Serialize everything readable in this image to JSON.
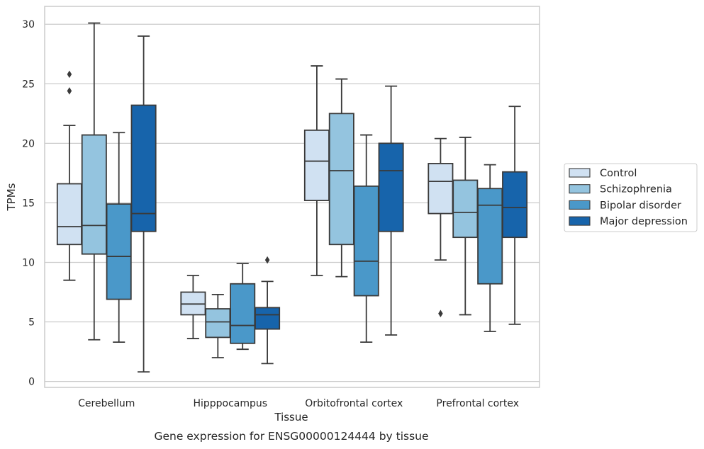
{
  "caption": "Gene expression for ENSG00000124444 by tissue",
  "chart_data": {
    "type": "box",
    "xlabel": "Tissue",
    "ylabel": "TPMs",
    "ylim": [
      -0.5,
      31.5
    ],
    "yticks": [
      0,
      5,
      10,
      15,
      20,
      25,
      30
    ],
    "grid": "horizontal",
    "legend_position": "right",
    "categories": [
      "Cerebellum",
      "Hipppocampus",
      "Orbitofrontal cortex",
      "Prefrontal cortex"
    ],
    "series": [
      {
        "name": "Control",
        "color": "#d0e1f2",
        "boxes": [
          {
            "whisker_low": 8.5,
            "q1": 11.5,
            "median": 13.0,
            "q3": 16.6,
            "whisker_high": 21.5,
            "outliers": [
              24.4,
              25.8
            ]
          },
          {
            "whisker_low": 3.6,
            "q1": 5.6,
            "median": 6.5,
            "q3": 7.5,
            "whisker_high": 8.9,
            "outliers": []
          },
          {
            "whisker_low": 8.9,
            "q1": 15.2,
            "median": 18.5,
            "q3": 21.1,
            "whisker_high": 26.5,
            "outliers": []
          },
          {
            "whisker_low": 10.2,
            "q1": 14.1,
            "median": 16.8,
            "q3": 18.3,
            "whisker_high": 20.4,
            "outliers": [
              5.7
            ]
          }
        ]
      },
      {
        "name": "Schizophrenia",
        "color": "#94c4df",
        "boxes": [
          {
            "whisker_low": 3.5,
            "q1": 10.7,
            "median": 13.1,
            "q3": 20.7,
            "whisker_high": 30.1,
            "outliers": []
          },
          {
            "whisker_low": 2.0,
            "q1": 3.7,
            "median": 5.0,
            "q3": 6.1,
            "whisker_high": 7.3,
            "outliers": []
          },
          {
            "whisker_low": 8.8,
            "q1": 11.5,
            "median": 17.7,
            "q3": 22.5,
            "whisker_high": 25.4,
            "outliers": []
          },
          {
            "whisker_low": 5.6,
            "q1": 12.1,
            "median": 14.2,
            "q3": 16.9,
            "whisker_high": 20.5,
            "outliers": []
          }
        ]
      },
      {
        "name": "Bipolar disorder",
        "color": "#4a98c9",
        "boxes": [
          {
            "whisker_low": 3.3,
            "q1": 6.9,
            "median": 10.5,
            "q3": 14.9,
            "whisker_high": 20.9,
            "outliers": []
          },
          {
            "whisker_low": 2.7,
            "q1": 3.2,
            "median": 4.7,
            "q3": 8.2,
            "whisker_high": 9.9,
            "outliers": []
          },
          {
            "whisker_low": 3.3,
            "q1": 7.2,
            "median": 10.1,
            "q3": 16.4,
            "whisker_high": 20.7,
            "outliers": []
          },
          {
            "whisker_low": 4.2,
            "q1": 8.2,
            "median": 14.8,
            "q3": 16.2,
            "whisker_high": 18.2,
            "outliers": []
          }
        ]
      },
      {
        "name": "Major depression",
        "color": "#1764ab",
        "boxes": [
          {
            "whisker_low": 0.8,
            "q1": 12.6,
            "median": 14.1,
            "q3": 23.2,
            "whisker_high": 29.0,
            "outliers": []
          },
          {
            "whisker_low": 1.5,
            "q1": 4.4,
            "median": 5.6,
            "q3": 6.2,
            "whisker_high": 8.4,
            "outliers": [
              10.2
            ]
          },
          {
            "whisker_low": 3.9,
            "q1": 12.6,
            "median": 17.7,
            "q3": 20.0,
            "whisker_high": 24.8,
            "outliers": []
          },
          {
            "whisker_low": 4.8,
            "q1": 12.1,
            "median": 14.6,
            "q3": 17.6,
            "whisker_high": 23.1,
            "outliers": []
          }
        ]
      }
    ]
  }
}
